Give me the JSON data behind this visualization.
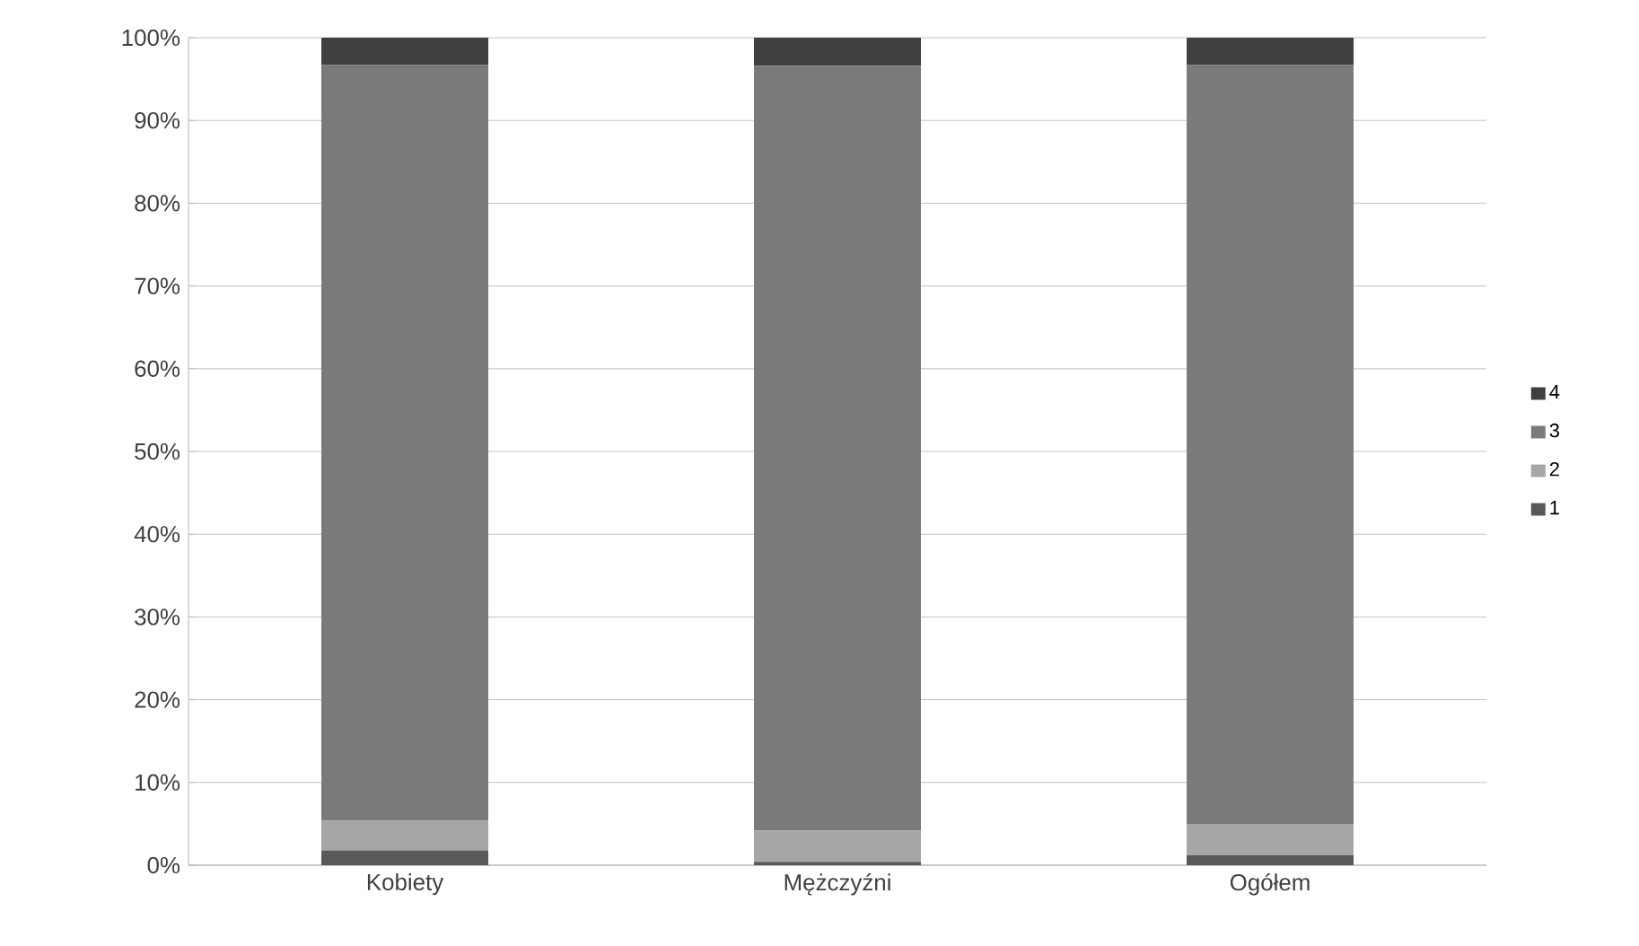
{
  "chart_data": {
    "type": "bar",
    "stacked": true,
    "categories": [
      "Kobiety",
      "Mężczyźni",
      "Ogółem"
    ],
    "series": [
      {
        "name": "1",
        "color": "#595959",
        "values": [
          1.8,
          0.4,
          1.2
        ]
      },
      {
        "name": "2",
        "color": "#a6a6a6",
        "values": [
          3.6,
          3.8,
          3.8
        ]
      },
      {
        "name": "3",
        "color": "#7a7a7a",
        "values": [
          91.3,
          92.4,
          91.7
        ]
      },
      {
        "name": "4",
        "color": "#404040",
        "values": [
          3.3,
          3.4,
          3.3
        ]
      }
    ],
    "ylim": [
      0,
      100
    ],
    "yticks": [
      {
        "value": 0,
        "label": "0%"
      },
      {
        "value": 10,
        "label": "10%"
      },
      {
        "value": 20,
        "label": "20%"
      },
      {
        "value": 30,
        "label": "30%"
      },
      {
        "value": 40,
        "label": "40%"
      },
      {
        "value": 50,
        "label": "50%"
      },
      {
        "value": 60,
        "label": "60%"
      },
      {
        "value": 70,
        "label": "70%"
      },
      {
        "value": 80,
        "label": "80%"
      },
      {
        "value": 90,
        "label": "90%"
      },
      {
        "value": 100,
        "label": "100%"
      }
    ],
    "grid": "y",
    "legend": "right"
  }
}
